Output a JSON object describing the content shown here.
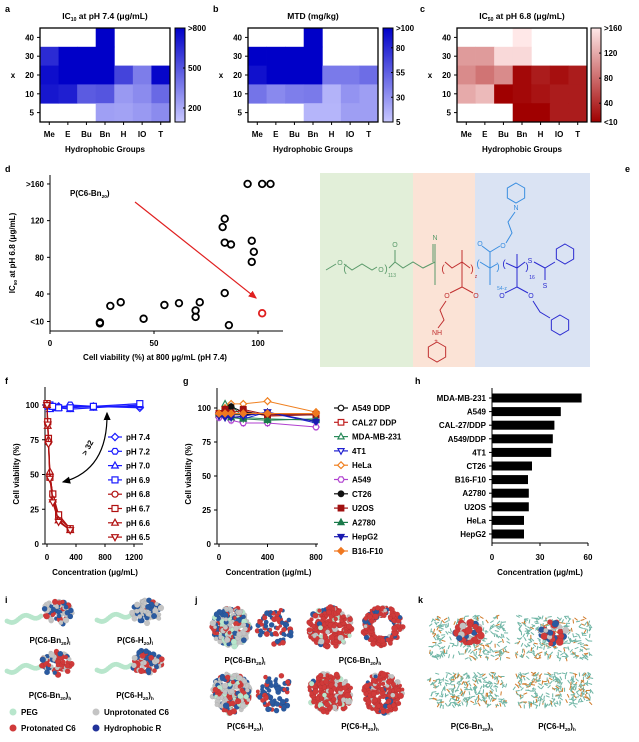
{
  "panel_labels": [
    "a",
    "b",
    "c",
    "d",
    "e",
    "f",
    "g",
    "h",
    "i",
    "j",
    "k"
  ],
  "chart_data": [
    {
      "id": "a",
      "type": "heatmap",
      "title": {
        "main": "IC",
        "sub": "10",
        "rest": " at pH 7.4 (μg/mL)"
      },
      "xlabel": "Hydrophobic Groups",
      "ylabel": "x",
      "x_categories": [
        "Me",
        "E",
        "Bu",
        "Bn",
        "H",
        "IO",
        "T"
      ],
      "y_categories": [
        "40",
        "30",
        "20",
        "10",
        "5"
      ],
      "values": [
        [
          null,
          null,
          null,
          800,
          null,
          null,
          null
        ],
        [
          650,
          800,
          800,
          800,
          null,
          null,
          null
        ],
        [
          750,
          800,
          800,
          800,
          560,
          360,
          780
        ],
        [
          720,
          690,
          480,
          500,
          260,
          310,
          430
        ],
        [
          null,
          null,
          null,
          240,
          230,
          260,
          310
        ]
      ],
      "colorbar_range": [
        95,
        800
      ],
      "colorbar_ticks": [
        {
          "label": ">800",
          "value": 800
        },
        {
          "label": "500",
          "value": 500
        },
        {
          "label": "200",
          "value": 200
        }
      ],
      "colors": {
        "low": "#c8c8ff",
        "high": "#0000c8"
      }
    },
    {
      "id": "b",
      "type": "heatmap",
      "title": {
        "main": "MTD (mg/kg)",
        "sub": "",
        "rest": ""
      },
      "xlabel": "Hydrophobic Groups",
      "ylabel": "x",
      "x_categories": [
        "Me",
        "E",
        "Bu",
        "Bn",
        "H",
        "IO",
        "T"
      ],
      "y_categories": [
        "40",
        "30",
        "20",
        "10",
        "5"
      ],
      "values": [
        [
          null,
          null,
          null,
          100,
          null,
          null,
          null
        ],
        [
          100,
          100,
          100,
          100,
          null,
          null,
          null
        ],
        [
          92,
          100,
          100,
          100,
          42,
          42,
          48
        ],
        [
          45,
          35,
          40,
          42,
          15,
          30,
          25
        ],
        [
          null,
          null,
          null,
          14,
          14,
          25,
          25
        ]
      ],
      "colorbar_range": [
        5,
        100
      ],
      "colorbar_ticks": [
        {
          "label": ">100",
          "value": 100
        },
        {
          "label": "80",
          "value": 80
        },
        {
          "label": "55",
          "value": 55
        },
        {
          "label": "30",
          "value": 30
        },
        {
          "label": "5",
          "value": 5
        }
      ],
      "colors": {
        "low": "#c8c8ff",
        "high": "#0000c8"
      }
    },
    {
      "id": "c",
      "type": "heatmap",
      "title": {
        "main": "IC",
        "sub": "50",
        "rest": " at pH 6.8 (μg/mL)"
      },
      "xlabel": "Hydrophobic Groups",
      "ylabel": "x",
      "x_categories": [
        "Me",
        "E",
        "Bu",
        "Bn",
        "H",
        "IO",
        "T"
      ],
      "y_categories": [
        "40",
        "30",
        "20",
        "10",
        "5"
      ],
      "values": [
        [
          null,
          null,
          null,
          160,
          null,
          null,
          null
        ],
        [
          110,
          110,
          150,
          150,
          null,
          null,
          null
        ],
        [
          100,
          85,
          100,
          15,
          28,
          20,
          28
        ],
        [
          120,
          130,
          10,
          15,
          22,
          28,
          28
        ],
        [
          null,
          null,
          null,
          10,
          5,
          28,
          28
        ]
      ],
      "colorbar_range": [
        10,
        160
      ],
      "colorbar_ticks": [
        {
          "label": ">160",
          "value": 160
        },
        {
          "label": "120",
          "value": 120
        },
        {
          "label": "80",
          "value": 80
        },
        {
          "label": "40",
          "value": 40
        },
        {
          "label": "<10",
          "value": 10
        }
      ],
      "colors": {
        "low": "#a00000",
        "high": "#ffe8e8"
      }
    },
    {
      "id": "d",
      "type": "scatter",
      "xlabel": "Cell viability (%) at 800 μg/mL (pH 7.4)",
      "ylabel": {
        "main": "IC",
        "sub": "50",
        "rest": " at pH 6.8 (μg/mL)"
      },
      "xlim": [
        0,
        110
      ],
      "ylim": [
        10,
        160
      ],
      "x_ticks": [
        {
          "label": "0",
          "value": 0
        },
        {
          "label": "50",
          "value": 50
        },
        {
          "label": "100",
          "value": 100
        }
      ],
      "y_ticks": [
        {
          "label": ">160",
          "value": 160
        },
        {
          "label": "120",
          "value": 120
        },
        {
          "label": "80",
          "value": 80
        },
        {
          "label": "40",
          "value": 40
        },
        {
          "label": "<10",
          "value": 10
        }
      ],
      "points": [
        [
          24,
          8
        ],
        [
          24,
          9
        ],
        [
          29,
          27
        ],
        [
          34,
          31
        ],
        [
          45,
          13
        ],
        [
          55,
          28
        ],
        [
          62,
          30
        ],
        [
          70,
          22
        ],
        [
          70,
          15
        ],
        [
          72,
          31
        ],
        [
          84,
          41
        ],
        [
          86,
          6
        ],
        [
          83,
          113
        ],
        [
          84,
          122
        ],
        [
          84,
          96
        ],
        [
          87,
          94
        ],
        [
          97,
          98
        ],
        [
          98,
          86
        ],
        [
          97,
          75
        ],
        [
          95,
          160
        ],
        [
          102,
          160
        ],
        [
          106,
          160
        ]
      ],
      "highlight": {
        "point": [
          102,
          19
        ],
        "label": {
          "pre": "P(C6-Bn",
          "sub": "20",
          "post": ")"
        },
        "color": "#e02020"
      }
    },
    {
      "id": "f",
      "type": "line",
      "xlabel": "Concentration (μg/mL)",
      "ylabel": "Cell viability (%)",
      "xlim": [
        0,
        1300
      ],
      "ylim": [
        0,
        110
      ],
      "x_ticks": [
        "0",
        "400",
        "800",
        "1200"
      ],
      "x_tick_values": [
        0,
        400,
        800,
        1200
      ],
      "y_ticks": [
        "0",
        "25",
        "50",
        "75",
        "100"
      ],
      "y_tick_values": [
        0,
        25,
        50,
        75,
        100
      ],
      "annotation": "> 32",
      "series": [
        {
          "name": "pH 7.4",
          "color": "#1a1aff",
          "marker": "diamond",
          "x": [
            0,
            40,
            80,
            160,
            320,
            640,
            1280
          ],
          "y": [
            100,
            98,
            99,
            99,
            99,
            99,
            98
          ]
        },
        {
          "name": "pH 7.2",
          "color": "#1a1aff",
          "marker": "hexagon",
          "x": [
            0,
            40,
            80,
            160,
            320,
            640,
            1280
          ],
          "y": [
            99,
            99,
            98,
            98,
            100,
            99,
            99
          ]
        },
        {
          "name": "pH 7.0",
          "color": "#1a1aff",
          "marker": "triangle",
          "x": [
            0,
            40,
            80,
            160,
            320,
            640,
            1280
          ],
          "y": [
            100,
            97,
            99,
            98,
            97,
            98,
            100
          ]
        },
        {
          "name": "pH 6.9",
          "color": "#1a1aff",
          "marker": "square",
          "x": [
            0,
            40,
            80,
            160,
            320,
            640,
            1280
          ],
          "y": [
            101,
            100,
            99,
            98,
            98,
            99,
            101
          ]
        },
        {
          "name": "pH 6.8",
          "color": "#b01010",
          "marker": "circle",
          "x": [
            0,
            10,
            20,
            40,
            80,
            160,
            320
          ],
          "y": [
            100,
            87,
            73,
            50,
            35,
            19,
            11
          ]
        },
        {
          "name": "pH 6.7",
          "color": "#b01010",
          "marker": "square",
          "x": [
            0,
            10,
            20,
            40,
            80,
            160,
            320
          ],
          "y": [
            101,
            88,
            76,
            48,
            36,
            21,
            11
          ]
        },
        {
          "name": "pH 6.6",
          "color": "#b01010",
          "marker": "triangle",
          "x": [
            0,
            10,
            20,
            40,
            80,
            160,
            320
          ],
          "y": [
            100,
            85,
            75,
            52,
            32,
            17,
            10
          ]
        },
        {
          "name": "pH 6.5",
          "color": "#b01010",
          "marker": "triangle-down",
          "x": [
            0,
            10,
            20,
            40,
            80,
            160,
            320
          ],
          "y": [
            100,
            86,
            72,
            47,
            30,
            16,
            10
          ]
        }
      ]
    },
    {
      "id": "g",
      "type": "line",
      "xlabel": "Concentration (μg/mL)",
      "ylabel": "Cell viability (%)",
      "xlim": [
        0,
        800
      ],
      "ylim": [
        0,
        110
      ],
      "x_ticks": [
        "0",
        "400",
        "800"
      ],
      "x_tick_values": [
        0,
        400,
        800
      ],
      "y_ticks": [
        "0",
        "25",
        "50",
        "75",
        "100"
      ],
      "y_tick_values": [
        0,
        25,
        50,
        75,
        100
      ],
      "x": [
        0,
        50,
        100,
        200,
        400,
        800
      ],
      "series": [
        {
          "name": "A549 DDP",
          "color": "#111111",
          "marker": "circle",
          "filled": false,
          "y": [
            96,
            96,
            95,
            95,
            96,
            96
          ]
        },
        {
          "name": "CAL27 DDP",
          "color": "#c02020",
          "marker": "square",
          "filled": false,
          "y": [
            96,
            98,
            97,
            98,
            94,
            95
          ]
        },
        {
          "name": "MDA-MB-231",
          "color": "#2a8a5a",
          "marker": "triangle",
          "filled": false,
          "y": [
            95,
            103,
            102,
            93,
            92,
            91
          ]
        },
        {
          "name": "4T1",
          "color": "#2020d0",
          "marker": "triangle-down",
          "filled": false,
          "y": [
            95,
            96,
            94,
            92,
            97,
            89
          ]
        },
        {
          "name": "HeLa",
          "color": "#f08020",
          "marker": "diamond",
          "filled": false,
          "y": [
            95,
            100,
            103,
            103,
            105,
            97
          ]
        },
        {
          "name": "A549",
          "color": "#b040d0",
          "marker": "hexagon",
          "filled": false,
          "y": [
            93,
            94,
            91,
            89,
            89,
            86
          ]
        },
        {
          "name": "CT26",
          "color": "#111111",
          "marker": "circle",
          "filled": true,
          "y": [
            96,
            97,
            101,
            97,
            95,
            95
          ]
        },
        {
          "name": "U2OS",
          "color": "#a01010",
          "marker": "square",
          "filled": true,
          "y": [
            96,
            99,
            96,
            99,
            95,
            95
          ]
        },
        {
          "name": "A2780",
          "color": "#1a7a4a",
          "marker": "triangle",
          "filled": true,
          "y": [
            96,
            95,
            93,
            92,
            91,
            92
          ]
        },
        {
          "name": "HepG2",
          "color": "#1a1ab0",
          "marker": "triangle-down",
          "filled": true,
          "y": [
            94,
            93,
            93,
            94,
            97,
            90
          ]
        },
        {
          "name": "B16-F10",
          "color": "#f07820",
          "marker": "diamond",
          "filled": true,
          "y": [
            96,
            96,
            96,
            96,
            96,
            96
          ]
        }
      ]
    },
    {
      "id": "h",
      "type": "bar",
      "xlabel": "Concentration (μg/mL)",
      "ylabel": "",
      "xlim": [
        0,
        60
      ],
      "x_ticks": [
        "0",
        "30",
        "60"
      ],
      "x_tick_values": [
        0,
        30,
        60
      ],
      "categories": [
        "MDA-MB-231",
        "A549",
        "CAL-27/DDP",
        "A549/DDP",
        "4T1",
        "CT26",
        "B16-F10",
        "A2780",
        "U2OS",
        "HeLa",
        "HepG2"
      ],
      "values": [
        56,
        43,
        39,
        38,
        37,
        25,
        22.5,
        23,
        23,
        20,
        20
      ]
    }
  ],
  "structure": {
    "atoms": {
      "O": "O",
      "N": "N",
      "S": "S",
      "NH": "NH",
      "plus": "+"
    },
    "repeats": {
      "peg": "113",
      "z": "z",
      "b": "54-z",
      "c": "16"
    },
    "colors": {
      "peg": "#5a9a6a",
      "c6h": "#c03030",
      "c6": "#3a8ee0",
      "r": "#2a2ad0",
      "bg_peg": "#e2efd9",
      "bg_c6h": "#fbe3d6",
      "bg_c6": "#dae3f3"
    }
  },
  "renders": {
    "captions": {
      "i_bn_l": {
        "pre": "P(C6-Bn",
        "sub": "20",
        "post": ")",
        "sub2": "l"
      },
      "i_h_l": {
        "pre": "P(C6-H",
        "sub": "20",
        "post": ")",
        "sub2": "l"
      },
      "i_bn_h": {
        "pre": "P(C6-Bn",
        "sub": "20",
        "post": ")",
        "sub2": "h"
      },
      "i_h_h": {
        "pre": "P(C6-H",
        "sub": "20",
        "post": ")",
        "sub2": "h"
      },
      "j_bn_l": {
        "pre": "P(C6-Bn",
        "sub": "20",
        "post": ")",
        "sub2": "l"
      },
      "j_bn_h": {
        "pre": "P(C6-Bn",
        "sub": "20",
        "post": ")",
        "sub2": "h"
      },
      "j_h_l": {
        "pre": "P(C6-H",
        "sub": "20",
        "post": ")",
        "sub2": "l"
      },
      "j_h_h": {
        "pre": "P(C6-H",
        "sub": "20",
        "post": ")",
        "sub2": "h"
      },
      "k_bn_h": {
        "pre": "P(C6-Bn",
        "sub": "20",
        "post": ")",
        "sub2": "h"
      },
      "k_h_h": {
        "pre": "P(C6-H",
        "sub": "20",
        "post": ")",
        "sub2": "h"
      }
    },
    "legend": [
      {
        "label": "PEG",
        "color": "#b8e6cc"
      },
      {
        "label": "Unprotonated C6",
        "color": "#c4c4c4"
      },
      {
        "label": "Protonated C6",
        "color": "#d03a3a"
      },
      {
        "label": "Hydrophobic R",
        "color": "#22339a"
      }
    ],
    "colors": {
      "peg": "#b8e6cc",
      "c6": "#c4c4c4",
      "c6h": "#d03a3a",
      "r": "#2a5aa0",
      "membrane": "#6fb5a5",
      "lipid_tail": "#d07a2a"
    }
  }
}
